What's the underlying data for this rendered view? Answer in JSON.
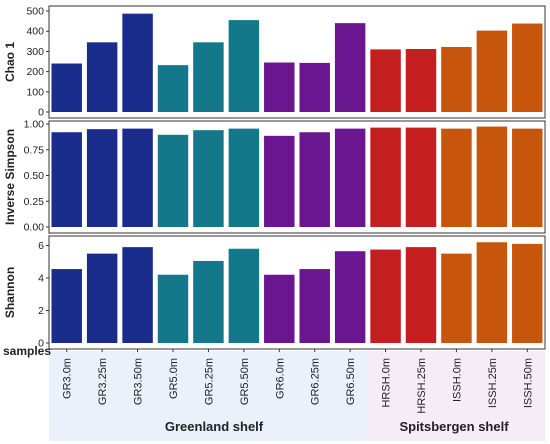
{
  "chart_data": {
    "type": "bar",
    "categories": [
      "GR3.0m",
      "GR3.25m",
      "GR3.50m",
      "GR5.0m",
      "GR5.25m",
      "GR5.50m",
      "GR6.0m",
      "GR6.25m",
      "GR6.50m",
      "HRSH.0m",
      "HRSH.25m",
      "ISSH.0m",
      "ISSH.25m",
      "ISSH.50m"
    ],
    "bar_colors": [
      "#1a2c8c",
      "#1a2c8c",
      "#1a2c8c",
      "#13788a",
      "#13788a",
      "#13788a",
      "#6a1690",
      "#6a1690",
      "#6a1690",
      "#c41e1e",
      "#c41e1e",
      "#c8550c",
      "#c8550c",
      "#c8550c"
    ],
    "panels": [
      {
        "ylabel": "Chao 1",
        "ylim": [
          0,
          510
        ],
        "ticks": [
          0,
          100,
          200,
          300,
          400,
          500
        ],
        "tick_labels": [
          "0",
          "100",
          "200",
          "300",
          "400",
          "500"
        ],
        "values": [
          240,
          345,
          487,
          232,
          345,
          455,
          245,
          243,
          440,
          310,
          312,
          322,
          403,
          438
        ]
      },
      {
        "ylabel": "Inverse Simpson",
        "ylim": [
          0,
          1.0
        ],
        "ticks": [
          0,
          0.25,
          0.5,
          0.75,
          1.0
        ],
        "tick_labels": [
          "0.00",
          "0.25",
          "0.50",
          "0.75",
          "1.00"
        ],
        "values": [
          0.92,
          0.95,
          0.955,
          0.895,
          0.94,
          0.955,
          0.885,
          0.92,
          0.955,
          0.965,
          0.965,
          0.955,
          0.975,
          0.955
        ]
      },
      {
        "ylabel": "Shannon",
        "ylim": [
          0,
          6.4
        ],
        "ticks": [
          0,
          2,
          4,
          6
        ],
        "tick_labels": [
          "0",
          "2",
          "4",
          "6"
        ],
        "values": [
          4.55,
          5.5,
          5.9,
          4.2,
          5.05,
          5.8,
          4.2,
          4.55,
          5.65,
          5.75,
          5.9,
          5.5,
          6.2,
          6.1
        ]
      }
    ],
    "xlabel": "samples",
    "groups": [
      {
        "label": "Greenland shelf",
        "color": "#eaf1fb"
      },
      {
        "label": "Spitsbergen shelf",
        "color": "#f6ecf7"
      }
    ],
    "grid": false
  }
}
